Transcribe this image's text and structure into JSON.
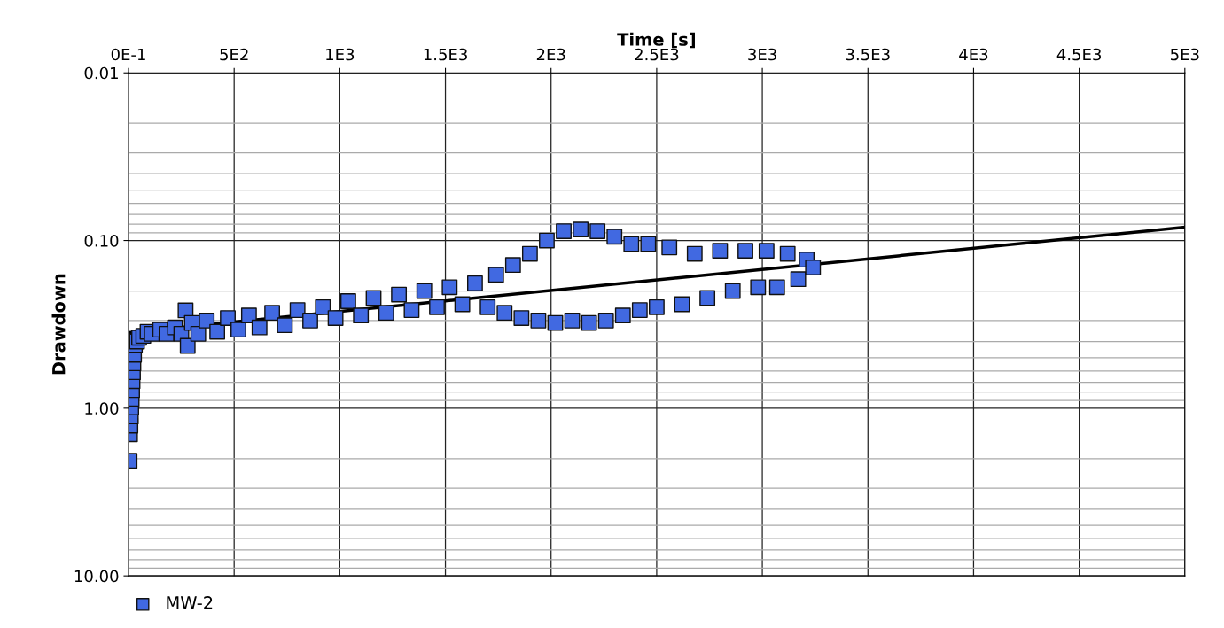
{
  "chart_data": {
    "type": "scatter",
    "xlabel": "Time [s]",
    "ylabel": "Drawdown",
    "log": "y",
    "grid": true,
    "legend": "bottom left",
    "xlim": [
      0,
      5000
    ],
    "xticks": [
      {
        "value": 0,
        "label": "0E-1"
      },
      {
        "value": 500,
        "label": "5E2"
      },
      {
        "value": 1000,
        "label": "1E3"
      },
      {
        "value": 1500,
        "label": "1.5E3"
      },
      {
        "value": 2000,
        "label": "2E3"
      },
      {
        "value": 2500,
        "label": "2.5E3"
      },
      {
        "value": 3000,
        "label": "3E3"
      },
      {
        "value": 3500,
        "label": "3.5E3"
      },
      {
        "value": 4000,
        "label": "4E3"
      },
      {
        "value": 4500,
        "label": "4.5E3"
      },
      {
        "value": 5000,
        "label": "5E3"
      }
    ],
    "ylim": [
      10,
      0.01
    ],
    "yticks": [
      {
        "value": 0.01,
        "label": "0.01"
      },
      {
        "value": 0.1,
        "label": "0.10"
      },
      {
        "value": 1,
        "label": "1.00"
      },
      {
        "value": 10,
        "label": "10.00"
      }
    ],
    "series": [
      {
        "name": "MW-2",
        "marker": "square",
        "color": "#4169e1",
        "x": [
          5,
          7,
          9,
          11,
          13,
          15,
          17,
          19,
          21,
          23,
          26,
          30,
          40,
          50,
          70,
          90,
          110,
          150,
          180,
          220,
          250,
          270,
          280,
          300,
          330,
          370,
          420,
          470,
          520,
          570,
          620,
          680,
          740,
          800,
          860,
          920,
          980,
          1040,
          1100,
          1160,
          1220,
          1280,
          1340,
          1400,
          1460,
          1520,
          1580,
          1640,
          1700,
          1740,
          1780,
          1820,
          1860,
          1900,
          1940,
          1980,
          2020,
          2060,
          2100,
          2140,
          2180,
          2220,
          2260,
          2300,
          2340,
          2380,
          2420,
          2460,
          2500,
          2560,
          2620,
          2680,
          2740,
          2800,
          2860,
          2920,
          2980,
          3020,
          3070,
          3120,
          3170,
          3210,
          3240
        ],
        "values": [
          2.06,
          1.43,
          1.27,
          1.12,
          0.99,
          0.88,
          0.78,
          0.69,
          0.61,
          0.54,
          0.48,
          0.42,
          0.4,
          0.38,
          0.37,
          0.35,
          0.36,
          0.34,
          0.36,
          0.33,
          0.36,
          0.261,
          0.425,
          0.31,
          0.36,
          0.3,
          0.35,
          0.29,
          0.34,
          0.28,
          0.33,
          0.27,
          0.32,
          0.26,
          0.3,
          0.25,
          0.29,
          0.23,
          0.28,
          0.22,
          0.27,
          0.21,
          0.26,
          0.2,
          0.25,
          0.19,
          0.24,
          0.18,
          0.25,
          0.16,
          0.27,
          0.14,
          0.29,
          0.12,
          0.3,
          0.1,
          0.31,
          0.088,
          0.3,
          0.086,
          0.31,
          0.088,
          0.3,
          0.095,
          0.28,
          0.105,
          0.26,
          0.105,
          0.25,
          0.11,
          0.24,
          0.12,
          0.22,
          0.115,
          0.2,
          0.115,
          0.19,
          0.115,
          0.19,
          0.12,
          0.17,
          0.13,
          0.145
        ]
      },
      {
        "type": "line",
        "marker": "none",
        "color": "#000000",
        "x": [
          0,
          5000
        ],
        "values": [
          0.354,
          0.0834
        ]
      }
    ]
  }
}
